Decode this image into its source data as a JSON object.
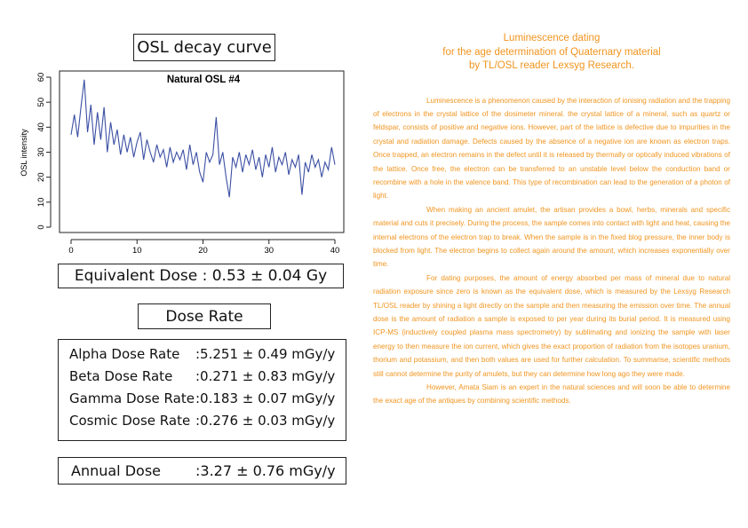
{
  "panel_title": "OSL decay curve",
  "chart_data": {
    "type": "line",
    "title": "Natural OSL #4",
    "y_label": "OSL intensity",
    "color": "#3b4fa3",
    "xlim": [
      0,
      40
    ],
    "ylim": [
      0,
      60
    ],
    "xticks": [
      0,
      10,
      20,
      30,
      40
    ],
    "yticks": [
      0,
      10,
      20,
      30,
      40,
      50,
      60
    ],
    "x": [
      0,
      0.5,
      1,
      1.5,
      2,
      2.5,
      3,
      3.5,
      4,
      4.5,
      5,
      5.5,
      6,
      6.5,
      7,
      7.5,
      8,
      8.5,
      9,
      9.5,
      10,
      10.5,
      11,
      11.5,
      12,
      12.5,
      13,
      13.5,
      14,
      14.5,
      15,
      15.5,
      16,
      16.5,
      17,
      17.5,
      18,
      18.5,
      19,
      19.5,
      20,
      20.5,
      21,
      21.5,
      22,
      22.5,
      23,
      23.5,
      24,
      24.5,
      25,
      25.5,
      26,
      26.5,
      27,
      27.5,
      28,
      28.5,
      29,
      29.5,
      30,
      30.5,
      31,
      31.5,
      32,
      32.5,
      33,
      33.5,
      34,
      34.5,
      35,
      35.5,
      36,
      36.5,
      37,
      37.5,
      38,
      38.5,
      39,
      39.5,
      40
    ],
    "values": [
      37,
      45,
      36,
      48,
      59,
      38,
      49,
      33,
      46,
      35,
      48,
      30,
      42,
      33,
      39,
      29,
      37,
      30,
      36,
      28,
      34,
      38,
      27,
      35,
      30,
      26,
      33,
      28,
      31,
      24,
      32,
      26,
      30,
      27,
      31,
      23,
      33,
      25,
      30,
      22,
      18,
      30,
      26,
      29,
      44,
      25,
      30,
      20,
      12,
      28,
      24,
      30,
      22,
      29,
      25,
      31,
      23,
      28,
      20,
      29,
      24,
      32,
      22,
      28,
      25,
      30,
      21,
      27,
      24,
      29,
      13,
      26,
      22,
      29,
      24,
      27,
      20,
      26,
      23,
      32,
      25
    ]
  },
  "equivalent_dose": "Equivalent Dose : 0.53 ± 0.04 Gy",
  "dose_rate_title": "Dose Rate",
  "dose_rates": [
    {
      "label": "Alpha Dose Rate",
      "value": ":5.251 ± 0.49  mGy/y"
    },
    {
      "label": "Beta Dose Rate",
      "value": ":0.271 ± 0.83  mGy/y"
    },
    {
      "label": "Gamma Dose Rate",
      "value": ":0.183 ± 0.07  mGy/y"
    },
    {
      "label": "Cosmic Dose Rate",
      "value": ":0.276 ± 0.03  mGy/y"
    }
  ],
  "annual_dose": {
    "label": "Annual Dose",
    "value": ":3.27 ± 0.76 mGy/y"
  },
  "article": {
    "heading": [
      "Luminescence dating",
      "for the age determination of Quaternary material",
      "by TL/OSL reader Lexsyg Research."
    ],
    "paragraphs": [
      "Luminescence is a phenomenon caused by the interaction of ionising radiation and the trapping of electrons in the crystal lattice of the dosimeter mineral. the crystal lattice of a mineral, such as quartz or feldspar, consists of positive and negative ions. However, part of the lattice is defective due to impurities in the crystal and radiation damage. Defects caused by the absence of a negative ion are known as electron traps. Once trapped, an electron remains in the defect until it is released by thermally or optically induced vibrations of the lattice. Once free, the electron can be transferred to an unstable level below the conduction band or recombine with a hole in the valence band. This type of recombination can lead to the generation of a photon of light.",
      "When making an ancient amulet, the artisan provides a bowl, herbs, minerals and specific material and cuts it precisely. During the process, the sample comes into contact with light and heat, causing the internal electrons of the electron trap to break. When the sample is in the fixed blog pressure, the inner body is blocked from light. The electron begins to collect again around the amount, which increases exponentially over time.",
      "For dating purposes, the amount of energy absorbed per mass of mineral due to natural radiation exposure since zero is known as the equivalent dose, which is measured by the Lexsyg Research TL/OSL reader by shining a light directly on the sample and then measuring the emission over time. The annual dose is the amount of radiation a sample is exposed to per year during its burial period. It is measured using ICP-MS (inductively coupled plasma mass spectrometry) by sublimating and ionizing the sample with laser energy to then measure the ion current, which gives the exact proportion of radiation from the isotopes uranium, thorium and potassium, and then both values are used for further calculation. To summarise, scientific methods still cannot determine the purity of amulets, but they can determine how long ago they were made.",
      "However, Amata Siam is an expert in the natural sciences and will soon be able to determine the exact age of the antiques by combining scientific methods."
    ]
  }
}
